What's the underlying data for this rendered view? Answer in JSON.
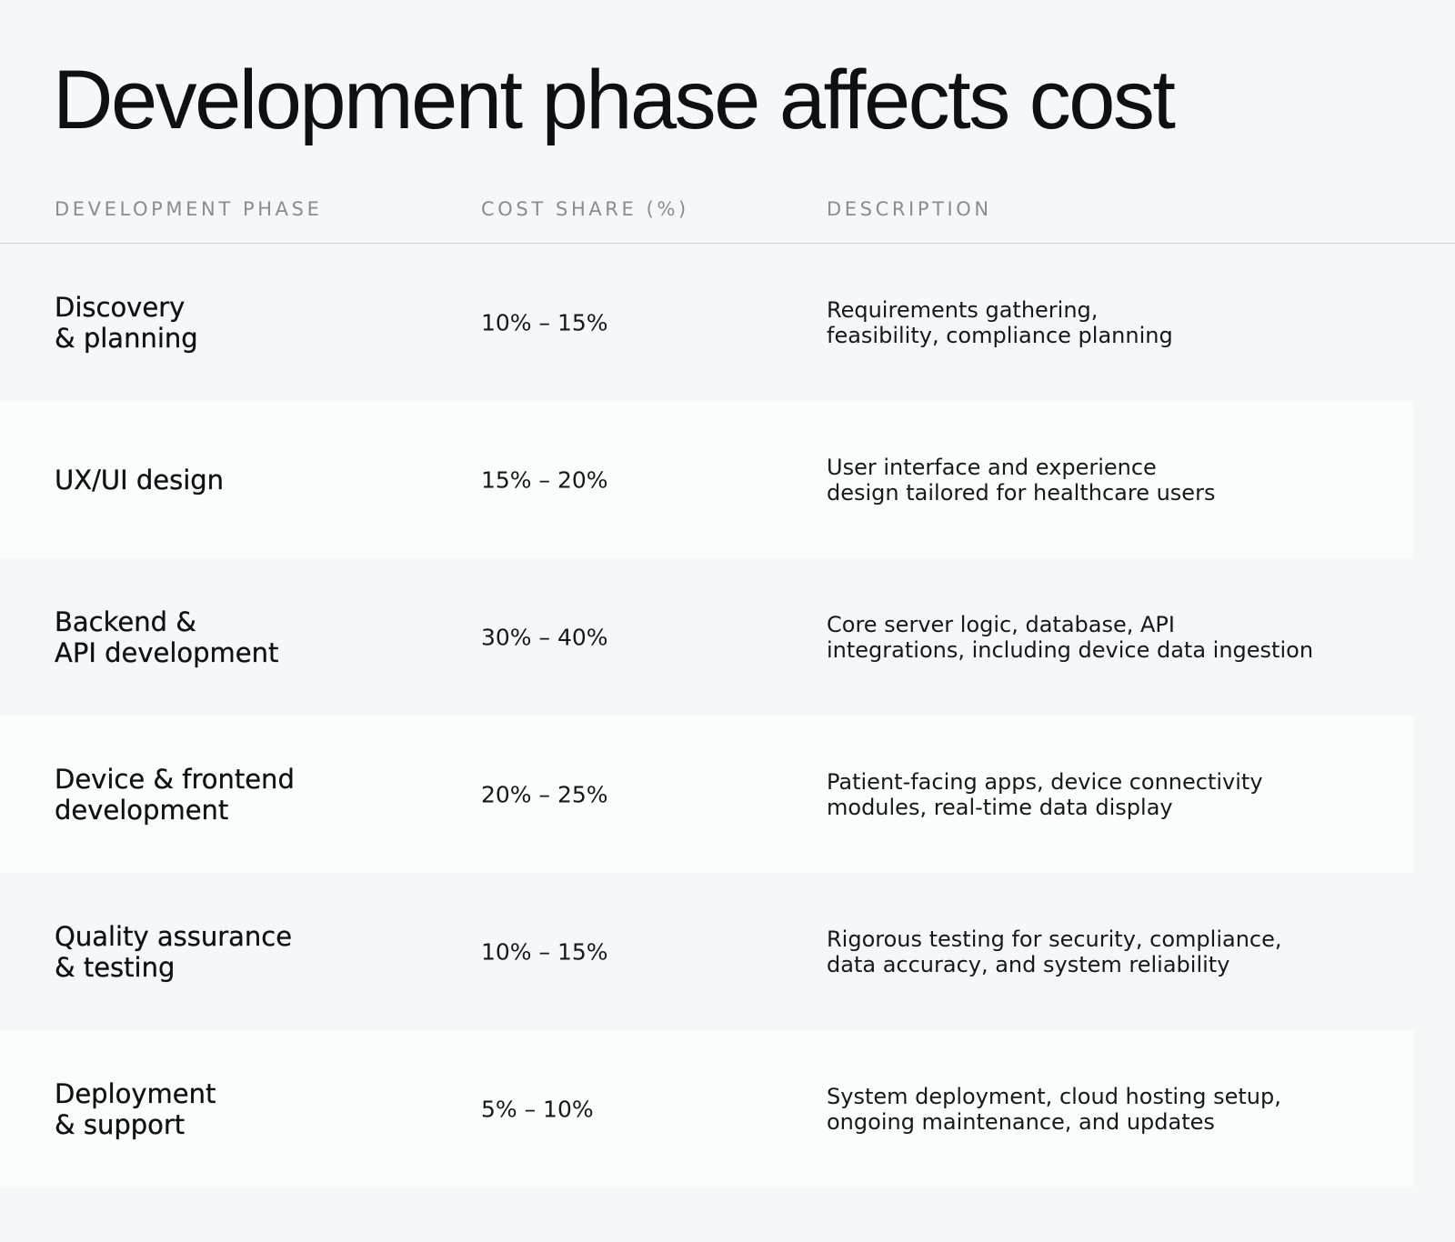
{
  "title": "Development phase affects cost",
  "table": {
    "headers": {
      "phase": "DEVELOPMENT PHASE",
      "share": "COST SHARE (%)",
      "description": "DESCRIPTION"
    },
    "rows": [
      {
        "phase": "Discovery\n& planning",
        "share": "10% – 15%",
        "description": "Requirements gathering,\nfeasibility, compliance planning"
      },
      {
        "phase": "UX/UI design",
        "share": "15% – 20%",
        "description": "User interface and experience\ndesign tailored for healthcare users"
      },
      {
        "phase": "Backend &\nAPI development",
        "share": "30% – 40%",
        "description": "Core server logic, database, API\nintegrations, including device data ingestion"
      },
      {
        "phase": "Device & frontend\ndevelopment",
        "share": "20% – 25%",
        "description": "Patient-facing apps, device connectivity\nmodules, real-time data display"
      },
      {
        "phase": "Quality assurance\n& testing",
        "share": "10% – 15%",
        "description": "Rigorous testing for security, compliance,\ndata accuracy, and system reliability"
      },
      {
        "phase": "Deployment\n& support",
        "share": "5% – 10%",
        "description": "System deployment, cloud hosting setup,\nongoing maintenance, and updates"
      }
    ]
  },
  "colors": {
    "page_background": "#f6f7f9",
    "alt_row_background": "#fbfcfc",
    "header_text": "#8a8d90",
    "body_text": "#0e1214",
    "divider": "#cfd3d7"
  }
}
